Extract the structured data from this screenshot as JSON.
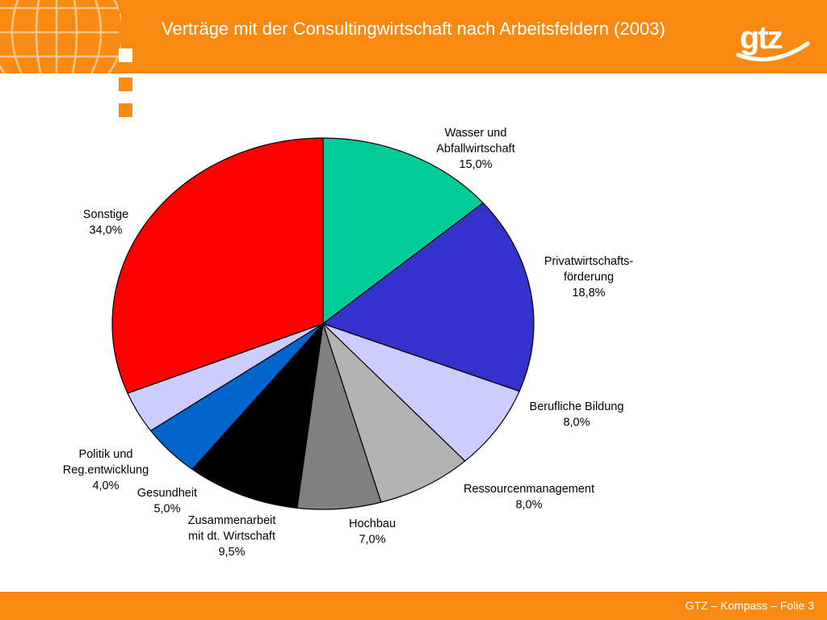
{
  "slide": {
    "title": "Verträge mit der Consultingwirtschaft nach Arbeitsfeldern (2003)",
    "logo_text": "gtz",
    "footer": "GTZ – Kompass – Folie 3"
  },
  "colors": {
    "brand_orange": "#f88a14",
    "text_white": "#ffffff"
  },
  "chart_data": {
    "type": "pie",
    "slices": [
      {
        "label": [
          "Wasser und",
          "Abfallwirtschaft"
        ],
        "value": 15.0,
        "pct_text": "15,0%",
        "color": "#00cc99"
      },
      {
        "label": [
          "Privatwirtschafts-",
          "förderung"
        ],
        "value": 18.8,
        "pct_text": "18,8%",
        "color": "#3333cc"
      },
      {
        "label": [
          "Berufliche Bildung"
        ],
        "value": 8.0,
        "pct_text": "8,0%",
        "color": "#ccccff"
      },
      {
        "label": [
          "Ressourcenmanagement"
        ],
        "value": 8.0,
        "pct_text": "8,0%",
        "color": "#b2b2b2"
      },
      {
        "label": [
          "Hochbau"
        ],
        "value": 7.0,
        "pct_text": "7,0%",
        "color": "#808080"
      },
      {
        "label": [
          "Zusammenarbeit",
          "mit dt. Wirtschaft"
        ],
        "value": 9.5,
        "pct_text": "9,5%",
        "color": "#000000"
      },
      {
        "label": [
          "Gesundheit"
        ],
        "value": 5.0,
        "pct_text": "5,0%",
        "color": "#0066cc"
      },
      {
        "label": [
          "Politik und",
          "Reg.entwicklung"
        ],
        "value": 4.0,
        "pct_text": "4,0%",
        "color": "#ccccff"
      },
      {
        "label": [
          "Sonstige"
        ],
        "value": 34.0,
        "pct_text": "34,0%",
        "color": "#ff0000"
      }
    ]
  }
}
